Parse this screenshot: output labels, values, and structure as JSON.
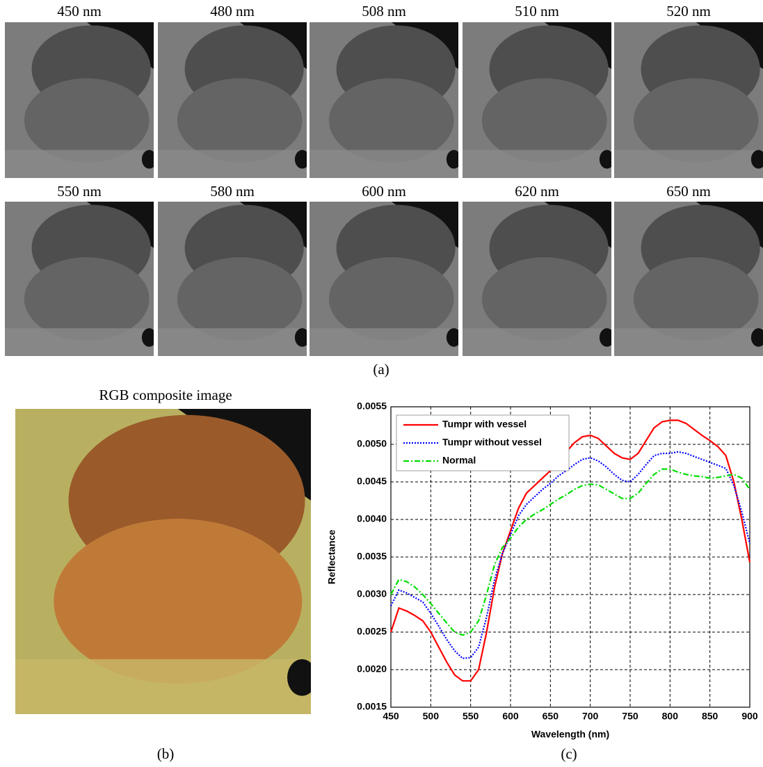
{
  "panel_a": {
    "images": [
      {
        "label": "450 nm"
      },
      {
        "label": "480 nm"
      },
      {
        "label": "508 nm"
      },
      {
        "label": "510 nm"
      },
      {
        "label": "520 nm"
      },
      {
        "label": "550 nm"
      },
      {
        "label": "580 nm"
      },
      {
        "label": "600 nm"
      },
      {
        "label": "620 nm"
      },
      {
        "label": "650 nm"
      }
    ],
    "caption": "(a)"
  },
  "panel_b": {
    "title": "RGB composite image",
    "caption": "(b)"
  },
  "chart_data": {
    "type": "line",
    "caption": "(c)",
    "xlabel": "Wavelength (nm)",
    "ylabel": "Reflectance",
    "x": [
      450,
      460,
      470,
      480,
      490,
      500,
      510,
      520,
      530,
      540,
      550,
      560,
      570,
      580,
      590,
      600,
      610,
      620,
      630,
      640,
      650,
      660,
      670,
      680,
      690,
      700,
      710,
      720,
      730,
      740,
      750,
      760,
      770,
      780,
      790,
      800,
      810,
      820,
      830,
      840,
      850,
      860,
      870,
      880,
      890,
      900
    ],
    "series": [
      {
        "name": "Tumpr with vessel",
        "color": "#ff0000",
        "linestyle": "solid",
        "values": [
          0.0025,
          0.00282,
          0.00278,
          0.00272,
          0.00265,
          0.0025,
          0.0023,
          0.0021,
          0.00193,
          0.00185,
          0.00185,
          0.002,
          0.0025,
          0.0031,
          0.00355,
          0.00385,
          0.00415,
          0.00435,
          0.00445,
          0.00455,
          0.00465,
          0.00478,
          0.0049,
          0.00502,
          0.0051,
          0.00512,
          0.00508,
          0.00498,
          0.00488,
          0.00482,
          0.0048,
          0.00488,
          0.00505,
          0.00522,
          0.0053,
          0.00532,
          0.00532,
          0.00528,
          0.0052,
          0.00512,
          0.00505,
          0.00497,
          0.00485,
          0.0045,
          0.004,
          0.00343
        ]
      },
      {
        "name": "Tumpr without vessel",
        "color": "#0000ff",
        "linestyle": "dotted",
        "values": [
          0.00285,
          0.00306,
          0.00302,
          0.00296,
          0.0029,
          0.00275,
          0.00258,
          0.0024,
          0.00225,
          0.00215,
          0.00216,
          0.0023,
          0.0027,
          0.0032,
          0.00355,
          0.0038,
          0.00405,
          0.0042,
          0.0043,
          0.0044,
          0.00448,
          0.00458,
          0.00465,
          0.00473,
          0.0048,
          0.00482,
          0.00478,
          0.0047,
          0.0046,
          0.00452,
          0.0045,
          0.0046,
          0.00473,
          0.00485,
          0.00488,
          0.00488,
          0.0049,
          0.00488,
          0.00484,
          0.0048,
          0.00476,
          0.00472,
          0.00468,
          0.00445,
          0.0041,
          0.00368
        ]
      },
      {
        "name": "Normal",
        "color": "#00dd00",
        "linestyle": "dashdot",
        "values": [
          0.003,
          0.0032,
          0.00317,
          0.0031,
          0.003,
          0.00288,
          0.00275,
          0.00262,
          0.0025,
          0.00246,
          0.0025,
          0.00265,
          0.003,
          0.0034,
          0.00363,
          0.00375,
          0.0039,
          0.004,
          0.00407,
          0.00413,
          0.0042,
          0.00427,
          0.00433,
          0.0044,
          0.00445,
          0.00447,
          0.00446,
          0.0044,
          0.00434,
          0.00428,
          0.00428,
          0.00435,
          0.00448,
          0.0046,
          0.00467,
          0.00467,
          0.00463,
          0.0046,
          0.00458,
          0.00457,
          0.00455,
          0.00456,
          0.00458,
          0.0046,
          0.00455,
          0.0044
        ]
      }
    ],
    "xlim": [
      450,
      900
    ],
    "xticks": [
      450,
      500,
      550,
      600,
      650,
      700,
      750,
      800,
      850,
      900
    ],
    "ylim": [
      0.0015,
      0.0055
    ],
    "yticks": [
      0.0015,
      {
        "value": 0.002,
        "label": "0.0020"
      },
      0.0025,
      {
        "value": 0.003,
        "label": "0.0030"
      },
      0.0035,
      {
        "value": 0.004,
        "label": "0.0040"
      },
      0.0045,
      {
        "value": 0.005,
        "label": "0.0050"
      },
      0.0055
    ],
    "grid": true,
    "legend": "upper left"
  }
}
